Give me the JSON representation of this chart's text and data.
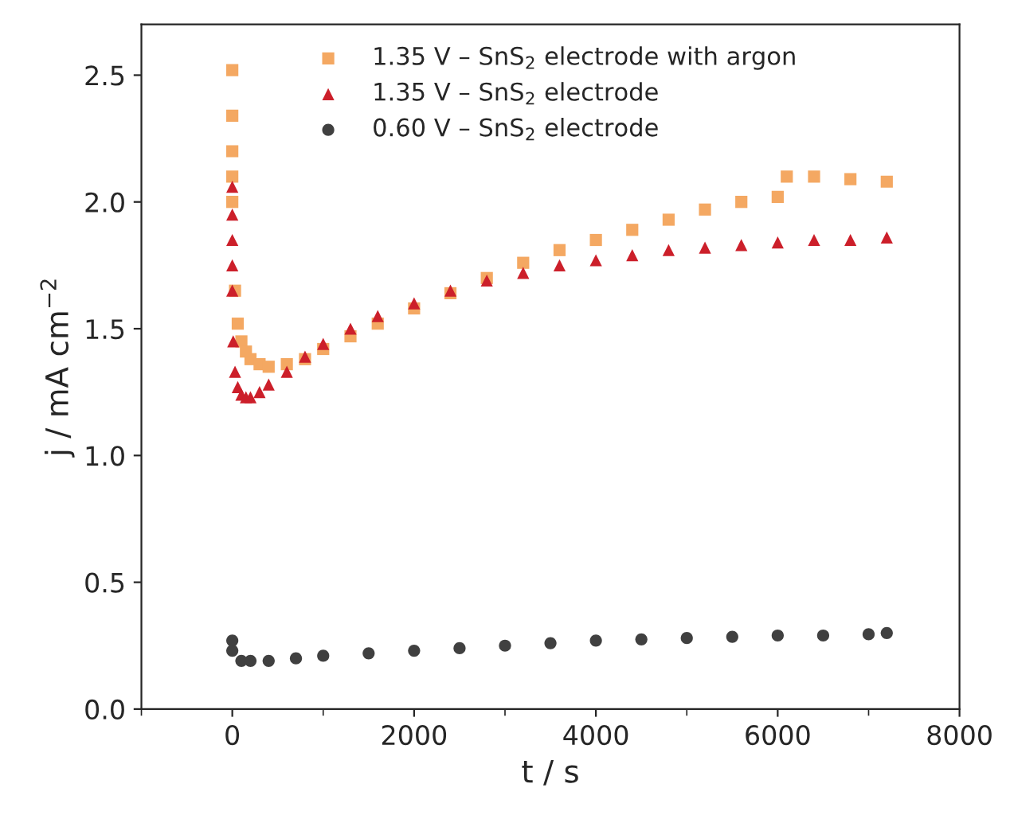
{
  "chart_data": {
    "type": "scatter",
    "xlabel": "t / s",
    "ylabel": "j / mA cm$^{−2}$",
    "xlim": [
      -1000,
      8000
    ],
    "xticks": [
      0,
      2000,
      4000,
      6000,
      8000
    ],
    "ylim": [
      0,
      2.7
    ],
    "yticks": [
      {
        "value": 0,
        "label": "0.0"
      },
      0.5,
      {
        "value": 1,
        "label": "1.0"
      },
      1.5,
      {
        "value": 2,
        "label": "2.0"
      },
      2.5
    ],
    "legend": "top",
    "grid": false,
    "series": [
      {
        "name": "1.35 V – SnS$_{2}$ electrode with argon",
        "color": "#f4a862",
        "marker": "square",
        "x": [
          0,
          0,
          0,
          0,
          0,
          30,
          60,
          100,
          150,
          200,
          300,
          400,
          600,
          800,
          1000,
          1300,
          1600,
          2000,
          2400,
          2800,
          3200,
          3600,
          4000,
          4400,
          4800,
          5200,
          5600,
          6000,
          6100,
          6400,
          6800,
          7200
        ],
        "values": [
          2.52,
          2.34,
          2.2,
          2.1,
          2.0,
          1.65,
          1.52,
          1.45,
          1.41,
          1.38,
          1.36,
          1.35,
          1.36,
          1.38,
          1.42,
          1.47,
          1.52,
          1.58,
          1.64,
          1.7,
          1.76,
          1.81,
          1.85,
          1.89,
          1.93,
          1.97,
          2.0,
          2.02,
          2.1,
          2.1,
          2.09,
          2.08
        ]
      },
      {
        "name": "1.35 V – SnS$_{2}$ electrode",
        "color": "#cc1f2a",
        "marker": "triangle",
        "x": [
          0,
          0,
          0,
          0,
          0,
          10,
          30,
          60,
          100,
          150,
          200,
          300,
          400,
          600,
          800,
          1000,
          1300,
          1600,
          2000,
          2400,
          2800,
          3200,
          3600,
          4000,
          4400,
          4800,
          5200,
          5600,
          6000,
          6400,
          6800,
          7200
        ],
        "values": [
          2.06,
          1.95,
          1.85,
          1.75,
          1.65,
          1.45,
          1.33,
          1.27,
          1.24,
          1.23,
          1.23,
          1.25,
          1.28,
          1.33,
          1.39,
          1.44,
          1.5,
          1.55,
          1.6,
          1.65,
          1.69,
          1.72,
          1.75,
          1.77,
          1.79,
          1.81,
          1.82,
          1.83,
          1.84,
          1.85,
          1.85,
          1.86
        ]
      },
      {
        "name": "0.60 V – SnS$_{2}$ electrode",
        "color": "#404040",
        "marker": "circle",
        "x": [
          0,
          0,
          100,
          200,
          400,
          700,
          1000,
          1500,
          2000,
          2500,
          3000,
          3500,
          4000,
          4500,
          5000,
          5500,
          6000,
          6500,
          7000,
          7200
        ],
        "values": [
          0.27,
          0.23,
          0.19,
          0.19,
          0.19,
          0.2,
          0.21,
          0.22,
          0.23,
          0.24,
          0.25,
          0.26,
          0.27,
          0.275,
          0.28,
          0.285,
          0.29,
          0.29,
          0.295,
          0.3
        ]
      }
    ]
  }
}
